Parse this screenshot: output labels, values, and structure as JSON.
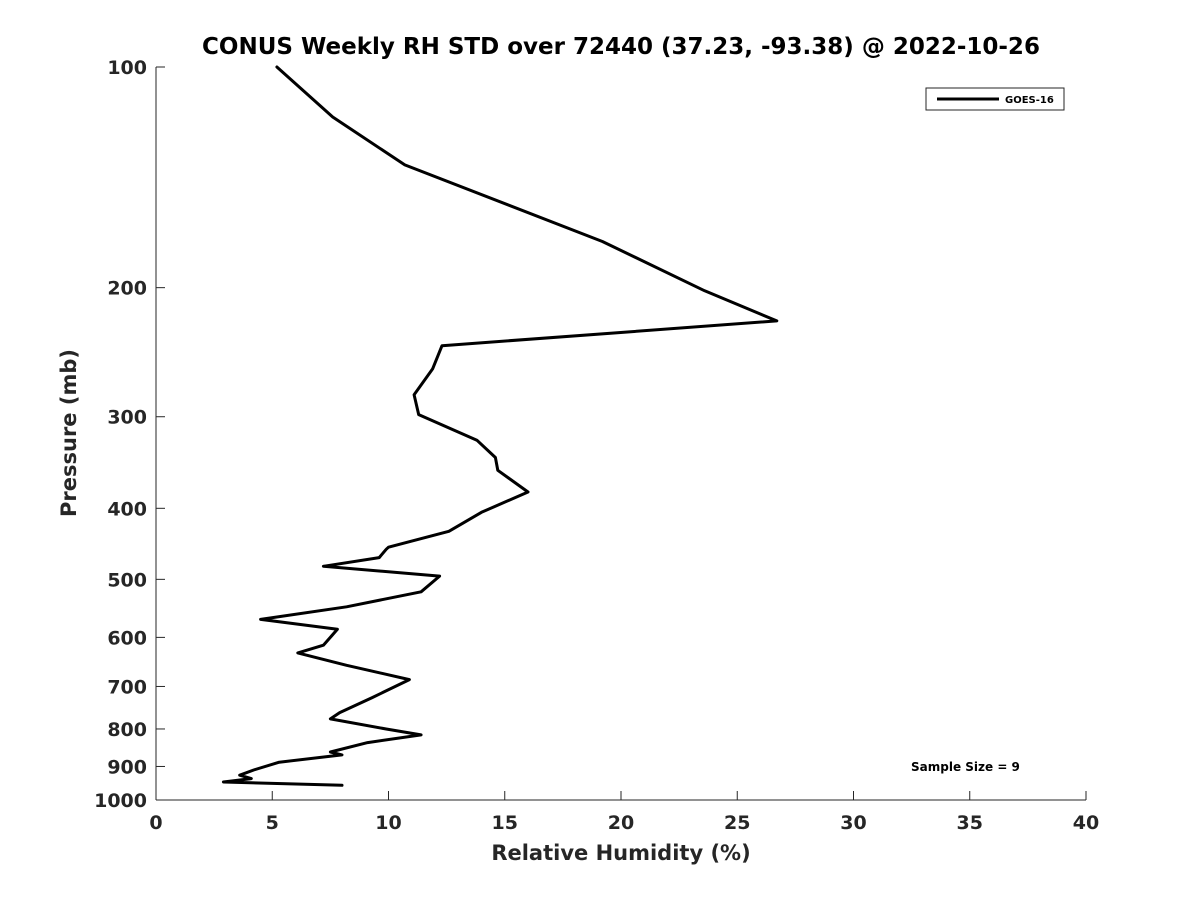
{
  "chart_data": {
    "type": "line",
    "title": "CONUS Weekly RH STD over 72440 (37.23, -93.38) @ 2022-10-26",
    "xlabel": "Relative Humidity (%)",
    "ylabel": "Pressure (mb)",
    "xlim": [
      0,
      40
    ],
    "ylim": [
      100,
      1000
    ],
    "y_scale": "log",
    "y_reversed": true,
    "x_ticks": [
      "0",
      "5",
      "10",
      "15",
      "20",
      "25",
      "30",
      "35",
      "40"
    ],
    "y_ticks": [
      "100",
      "200",
      "300",
      "400",
      "500",
      "600",
      "700",
      "800",
      "900",
      "1000"
    ],
    "grid": false,
    "legend_position": "top-right",
    "series": [
      {
        "name": "GOES-16",
        "color": "#000000",
        "x": [
          5.2,
          7.6,
          10.7,
          19.2,
          23.6,
          26.7,
          12.3,
          11.9,
          11.1,
          11.3,
          13.8,
          14.6,
          14.7,
          16.0,
          14.0,
          12.6,
          10.0,
          9.9,
          9.6,
          7.2,
          12.2,
          11.4,
          8.2,
          4.5,
          7.8,
          7.2,
          6.1,
          8.2,
          10.9,
          9.3,
          7.9,
          7.5,
          9.9,
          11.4,
          9.1,
          7.5,
          8.0,
          5.3,
          4.2,
          3.6,
          4.1,
          2.9,
          8.0
        ],
        "y": [
          100,
          117,
          136,
          173,
          202,
          222,
          240,
          258,
          280,
          298,
          323,
          341,
          355,
          380,
          405,
          430,
          452,
          455,
          467,
          480,
          495,
          520,
          545,
          567,
          585,
          615,
          630,
          655,
          685,
          725,
          760,
          775,
          800,
          815,
          835,
          860,
          868,
          888,
          910,
          925,
          935,
          945,
          955
        ]
      }
    ],
    "annotations": [
      "Sample Size = 9"
    ]
  }
}
